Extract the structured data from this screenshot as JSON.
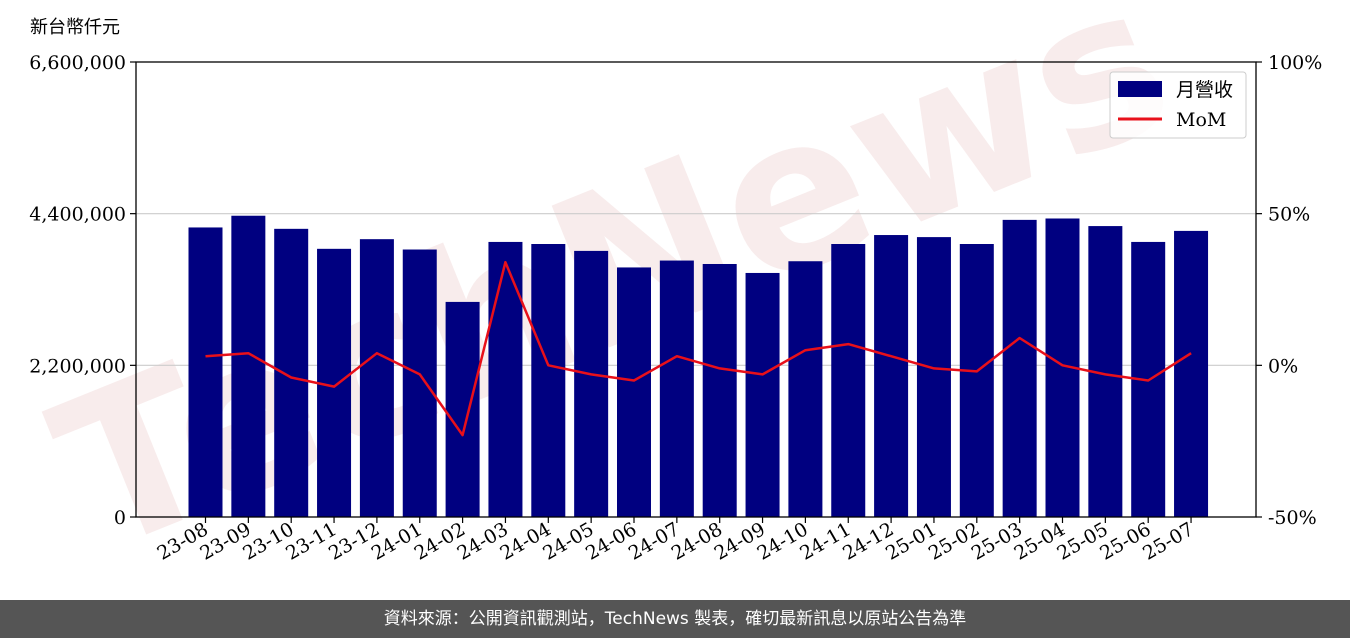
{
  "chart_data": {
    "type": "bar",
    "y_unit_label": "新台幣仟元",
    "categories": [
      "23-08",
      "23-09",
      "23-10",
      "23-11",
      "23-12",
      "24-01",
      "24-02",
      "24-03",
      "24-04",
      "24-05",
      "24-06",
      "24-07",
      "24-08",
      "24-09",
      "24-10",
      "24-11",
      "24-12",
      "25-01",
      "25-02",
      "25-03",
      "25-04",
      "25-05",
      "25-06",
      "25-07"
    ],
    "series": [
      {
        "name": "月營收",
        "axis": "left",
        "color": "#000080",
        "values": [
          4200000,
          4370000,
          4180000,
          3890000,
          4030000,
          3880000,
          3120000,
          3990000,
          3960000,
          3860000,
          3620000,
          3720000,
          3670000,
          3540000,
          3710000,
          3960000,
          4090000,
          4060000,
          3960000,
          4310000,
          4330000,
          4220000,
          3990000,
          4150000
        ]
      },
      {
        "name": "MoM",
        "axis": "right",
        "color": "#e8101a",
        "type": "line",
        "values": [
          3,
          4,
          -4,
          -7,
          4,
          -3,
          -23,
          34,
          0,
          -3,
          -5,
          3,
          -1,
          -3,
          5,
          7,
          3,
          -1,
          -2,
          9,
          0,
          -3,
          -5,
          4
        ]
      }
    ],
    "y_left": {
      "min": 0,
      "max": 6600000,
      "ticks": [
        0,
        2200000,
        4400000,
        6600000
      ],
      "tick_labels": [
        "0",
        "2,200,000",
        "4,400,000",
        "6,600,000"
      ]
    },
    "y_right": {
      "min": -50,
      "max": 100,
      "ticks": [
        -50,
        0,
        50,
        100
      ],
      "tick_labels": [
        "-50%",
        "0%",
        "50%",
        "100%"
      ]
    },
    "grid": "horizontal",
    "legend_position": "top-right",
    "watermark": "TechNews"
  },
  "footer": {
    "source_text": "資料來源：公開資訊觀測站，TechNews 製表，確切最新訊息以原站公告為準"
  }
}
